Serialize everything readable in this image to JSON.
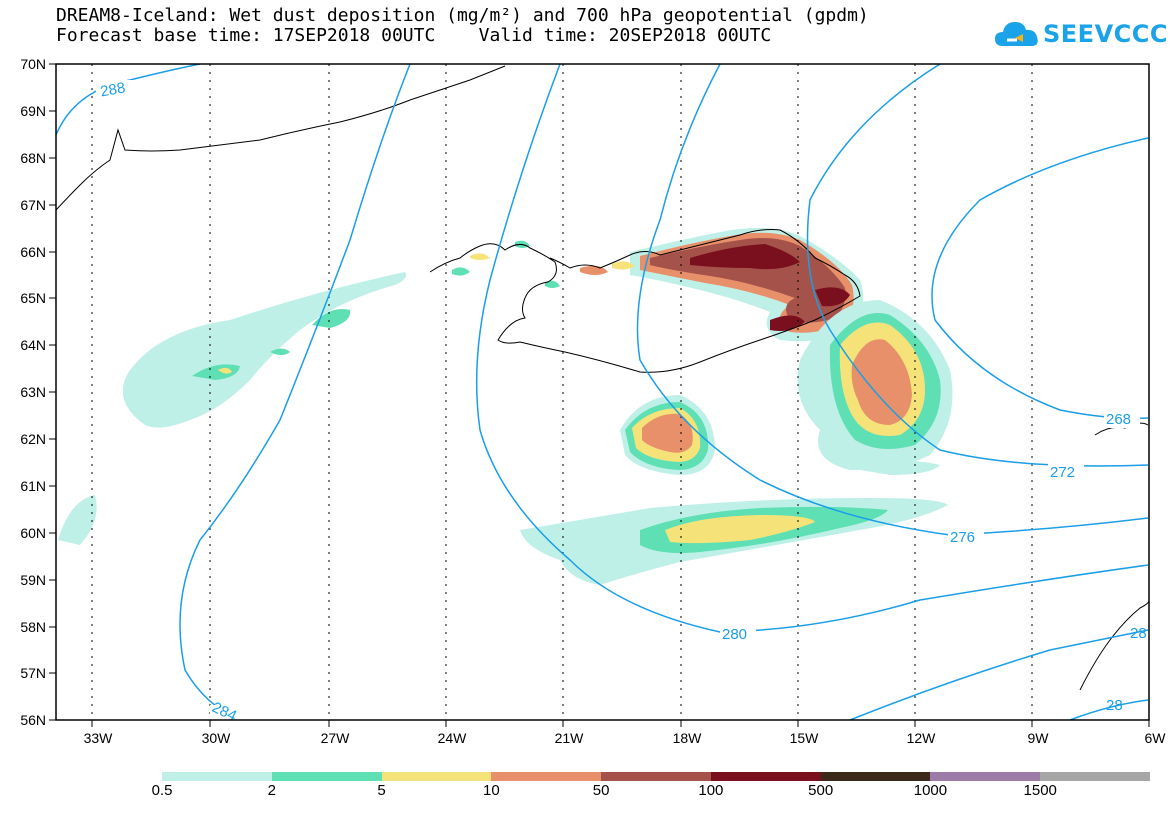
{
  "title": {
    "line1": "DREAM8-Iceland: Wet dust deposition (mg/m²) and 700 hPa geopotential (gpdm)",
    "line2": "Forecast base time: 17SEP2018 00UTC    Valid time: 20SEP2018 00UTC"
  },
  "logo": {
    "text": "SEEVCCC",
    "icon": "cloud-icon",
    "color": "#1aa3e8"
  },
  "axes": {
    "lon_ticks": [
      "33W",
      "30W",
      "27W",
      "24W",
      "21W",
      "18W",
      "15W",
      "12W",
      "9W",
      "6W"
    ],
    "lat_ticks": [
      "70N",
      "69N",
      "68N",
      "67N",
      "66N",
      "65N",
      "64N",
      "63N",
      "62N",
      "61N",
      "60N",
      "59N",
      "58N",
      "57N",
      "56N"
    ],
    "lon_range": [
      -34,
      -6
    ],
    "lat_range": [
      56,
      70
    ],
    "grid": "dotted"
  },
  "contours": {
    "color": "#1a9ee8",
    "labels": [
      "288",
      "284",
      "280",
      "276",
      "272",
      "268",
      "28",
      "28"
    ]
  },
  "legend": {
    "colors": [
      "#bff0e8",
      "#5ee0b4",
      "#f5e37a",
      "#e8906a",
      "#a5524a",
      "#7a0f1e",
      "#3b2a1a",
      "#9c7ba8",
      "#a6a6a6"
    ],
    "labels": [
      "0.5",
      "2",
      "5",
      "10",
      "50",
      "100",
      "500",
      "1000",
      "1500"
    ]
  }
}
